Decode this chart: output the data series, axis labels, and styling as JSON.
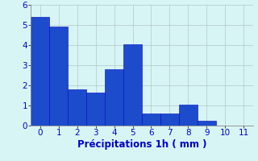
{
  "categories": [
    0,
    1,
    2,
    3,
    4,
    5,
    6,
    7,
    8,
    9,
    10,
    11
  ],
  "values": [
    5.4,
    4.9,
    1.8,
    1.65,
    2.8,
    4.05,
    0.6,
    0.6,
    1.05,
    0.25,
    0,
    0
  ],
  "bar_color": "#1c4ccc",
  "bar_edge_color": "#0000cc",
  "background_color": "#d8f5f5",
  "grid_color": "#b0c8c8",
  "xlabel": "Précipitations 1h ( mm )",
  "xlabel_color": "#0000cc",
  "tick_color": "#0000cc",
  "ylim": [
    0,
    6
  ],
  "yticks": [
    0,
    1,
    2,
    3,
    4,
    5,
    6
  ],
  "xticks": [
    0,
    1,
    2,
    3,
    4,
    5,
    6,
    7,
    8,
    9,
    10,
    11
  ],
  "label_fontsize": 7.5,
  "xlabel_fontsize": 8.5
}
